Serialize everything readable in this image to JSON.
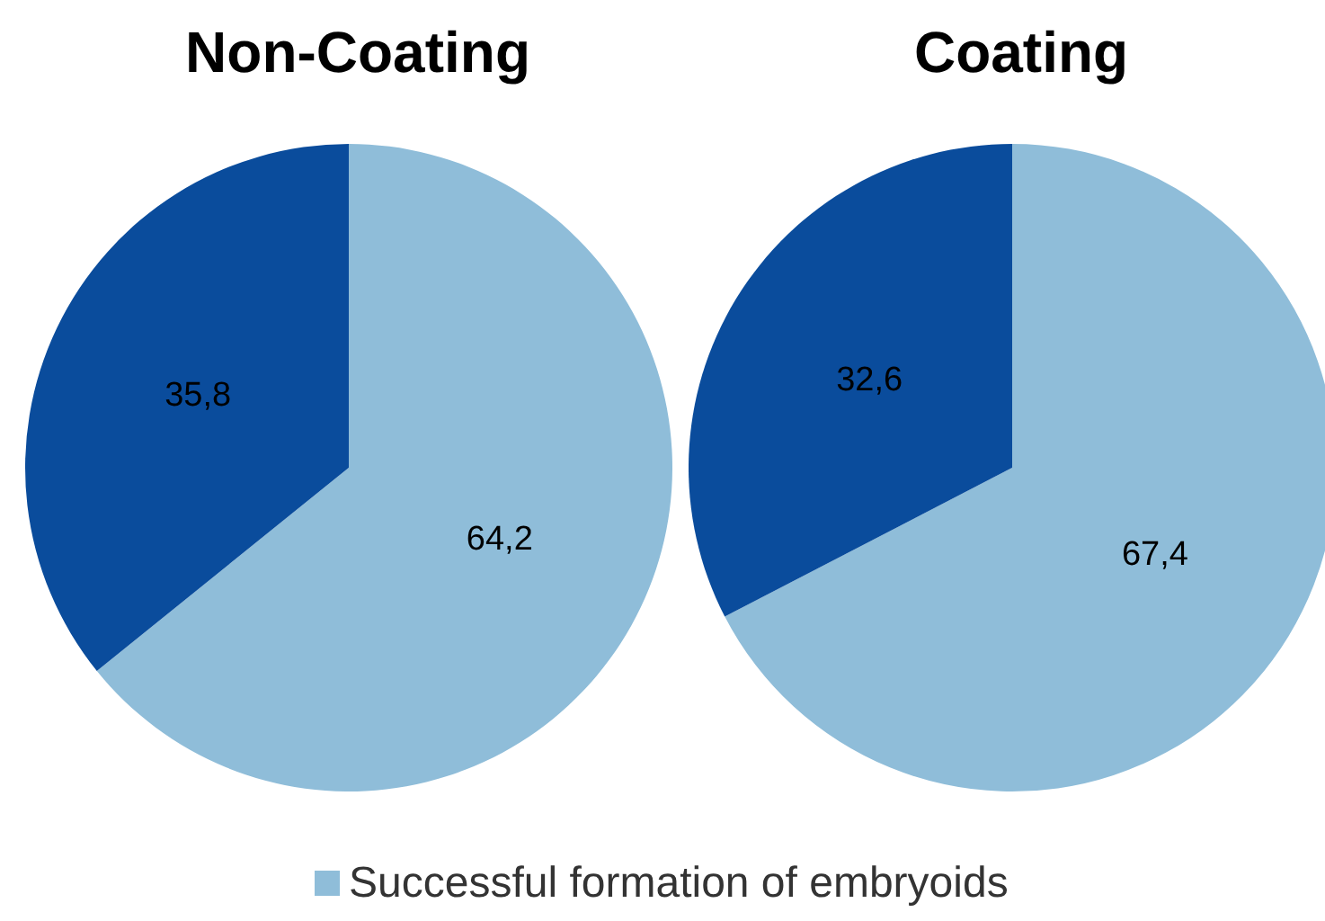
{
  "chart_data": [
    {
      "type": "pie",
      "title": "Non-Coating",
      "categories": [
        "Successful formation of embryoids",
        null
      ],
      "values": [
        64.2,
        35.8
      ],
      "value_labels": [
        "64,2",
        "35,8"
      ],
      "colors": [
        "#8fbdd9",
        "#0a4c9c"
      ],
      "legend": "bottom"
    },
    {
      "type": "pie",
      "title": "Coating",
      "categories": [
        null,
        null
      ],
      "values": [
        67.4,
        32.6
      ],
      "value_labels": [
        "67,4",
        "32,6"
      ],
      "colors": [
        "#8fbdd9",
        "#0a4c9c"
      ],
      "legend": false
    }
  ]
}
